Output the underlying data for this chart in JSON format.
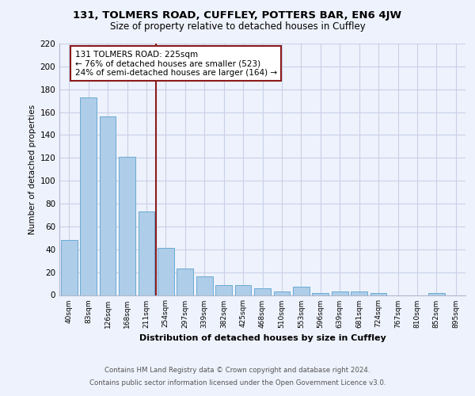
{
  "title1": "131, TOLMERS ROAD, CUFFLEY, POTTERS BAR, EN6 4JW",
  "title2": "Size of property relative to detached houses in Cuffley",
  "xlabel": "Distribution of detached houses by size in Cuffley",
  "ylabel": "Number of detached properties",
  "footer1": "Contains HM Land Registry data © Crown copyright and database right 2024.",
  "footer2": "Contains public sector information licensed under the Open Government Licence v3.0.",
  "annotation_line1": "131 TOLMERS ROAD: 225sqm",
  "annotation_line2": "← 76% of detached houses are smaller (523)",
  "annotation_line3": "24% of semi-detached houses are larger (164) →",
  "categories": [
    "40sqm",
    "83sqm",
    "126sqm",
    "168sqm",
    "211sqm",
    "254sqm",
    "297sqm",
    "339sqm",
    "382sqm",
    "425sqm",
    "468sqm",
    "510sqm",
    "553sqm",
    "596sqm",
    "639sqm",
    "681sqm",
    "724sqm",
    "767sqm",
    "810sqm",
    "852sqm",
    "895sqm"
  ],
  "values": [
    48,
    173,
    156,
    121,
    73,
    41,
    23,
    16,
    9,
    9,
    6,
    3,
    7,
    2,
    3,
    3,
    2,
    0,
    0,
    2,
    0
  ],
  "bar_color": "#aecde8",
  "bar_edge_color": "#6aaad4",
  "vline_color": "#8b1a1a",
  "annotation_box_color": "#8b1a1a",
  "bg_color": "#eef2fc",
  "grid_color": "#c8d0e8",
  "ylim": [
    0,
    220
  ],
  "yticks": [
    0,
    20,
    40,
    60,
    80,
    100,
    120,
    140,
    160,
    180,
    200,
    220
  ]
}
